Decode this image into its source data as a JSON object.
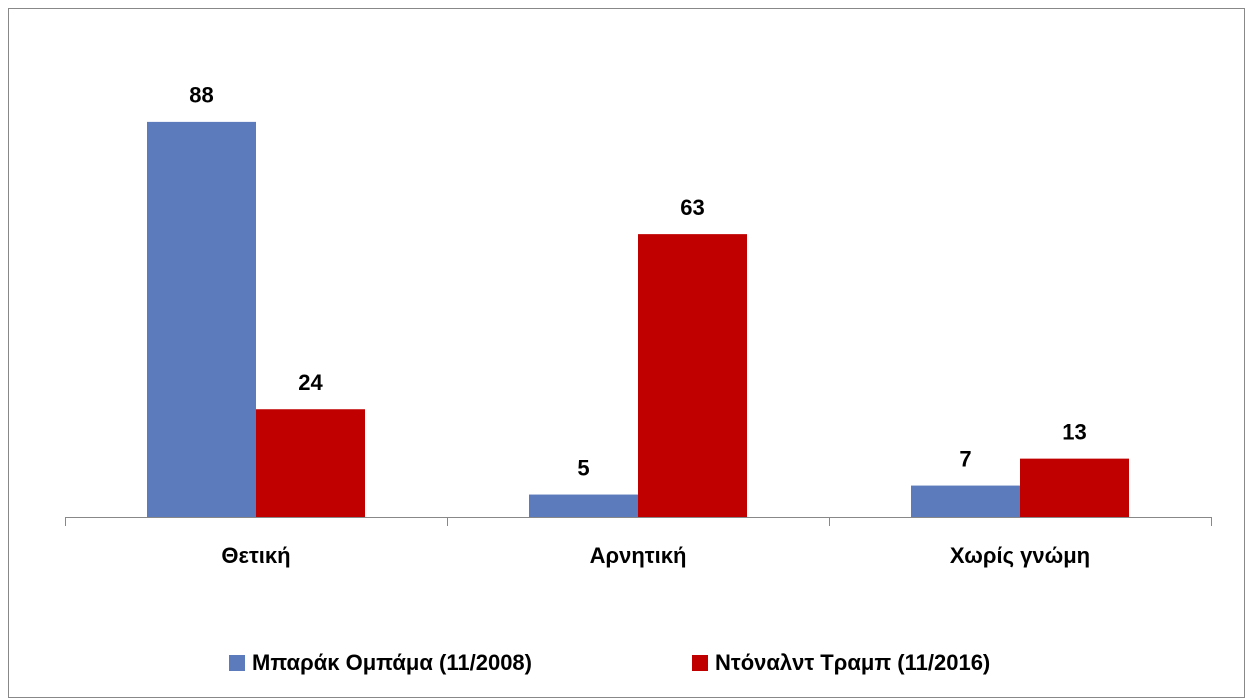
{
  "chart_data": {
    "type": "bar",
    "categories": [
      "Θετική",
      "Αρνητική",
      "Χωρίς γνώμη"
    ],
    "series": [
      {
        "name": "Μπαράκ Ομπάμα (11/2008)",
        "color": "#5b7bbd",
        "values": [
          88,
          5,
          7
        ]
      },
      {
        "name": "Ντόναλντ Τραμπ (11/2016)",
        "color": "#c00000",
        "values": [
          24,
          63,
          13
        ]
      }
    ],
    "ylim": [
      0,
      100
    ]
  }
}
